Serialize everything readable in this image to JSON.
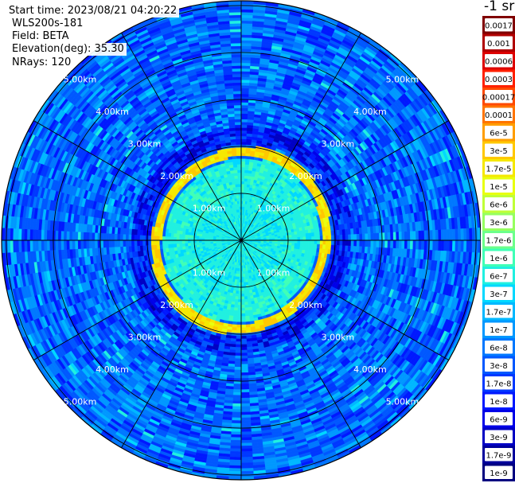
{
  "header": {
    "start_time": "Start time: 2023/08/21 04:20:22",
    "site": "WLS200s-181",
    "field": "Field: BETA",
    "elevation": "Elevation(deg): 35.30",
    "nrays": "NRays: 120"
  },
  "colorbar": {
    "units_label": "-1 sr",
    "entries": [
      {
        "label": "0.0017",
        "color": "#800000"
      },
      {
        "label": "0.001",
        "color": "#b00000"
      },
      {
        "label": "0.0006",
        "color": "#dd0000"
      },
      {
        "label": "0.0003",
        "color": "#ff2000"
      },
      {
        "label": "0.00017",
        "color": "#ff4a00"
      },
      {
        "label": "0.0001",
        "color": "#ff7400"
      },
      {
        "label": "6e-5",
        "color": "#ff9e00"
      },
      {
        "label": "3e-5",
        "color": "#ffc800"
      },
      {
        "label": "1.7e-5",
        "color": "#f5e800"
      },
      {
        "label": "1e-5",
        "color": "#e8ff10"
      },
      {
        "label": "6e-6",
        "color": "#c0ff37"
      },
      {
        "label": "3e-6",
        "color": "#96ff60"
      },
      {
        "label": "1.7e-6",
        "color": "#6cff8a"
      },
      {
        "label": "1e-6",
        "color": "#40ffb6"
      },
      {
        "label": "6e-7",
        "color": "#20f0e0"
      },
      {
        "label": "3e-7",
        "color": "#00d8ff"
      },
      {
        "label": "1.7e-7",
        "color": "#00b8ff"
      },
      {
        "label": "1e-7",
        "color": "#0098ff"
      },
      {
        "label": "6e-8",
        "color": "#0078ff"
      },
      {
        "label": "3e-8",
        "color": "#0058ff"
      },
      {
        "label": "1.7e-8",
        "color": "#0038ff"
      },
      {
        "label": "1e-8",
        "color": "#0018ff"
      },
      {
        "label": "6e-9",
        "color": "#0000e8"
      },
      {
        "label": "3e-9",
        "color": "#0000c4"
      },
      {
        "label": "1.7e-9",
        "color": "#00009c"
      },
      {
        "label": "1e-9",
        "color": "#000080"
      }
    ]
  },
  "chart_data": {
    "type": "heatmap",
    "projection": "polar-ppi",
    "range_rings": [
      "1.00km",
      "2.00km",
      "3.00km",
      "4.00km",
      "5.00km"
    ],
    "range_ring_values_km": [
      1,
      2,
      3,
      4,
      5
    ],
    "max_range_km": 5.1,
    "ray_count": 120,
    "spoke_angles_deg": [
      0,
      30,
      60,
      90,
      120,
      150,
      180,
      210,
      240,
      270,
      300,
      330
    ],
    "scale": "log",
    "value_range": [
      1e-09,
      0.0017
    ],
    "approx_field": [
      {
        "range_km": [
          0.0,
          1.0
        ],
        "beta": 5e-07
      },
      {
        "range_km": [
          1.0,
          1.7
        ],
        "beta": 6e-07
      },
      {
        "range_km": [
          1.75,
          1.95
        ],
        "beta": 2e-05
      },
      {
        "range_km": [
          2.0,
          2.4
        ],
        "beta": 1e-08
      },
      {
        "range_km": [
          2.4,
          5.1
        ],
        "beta": 4e-08
      }
    ]
  }
}
